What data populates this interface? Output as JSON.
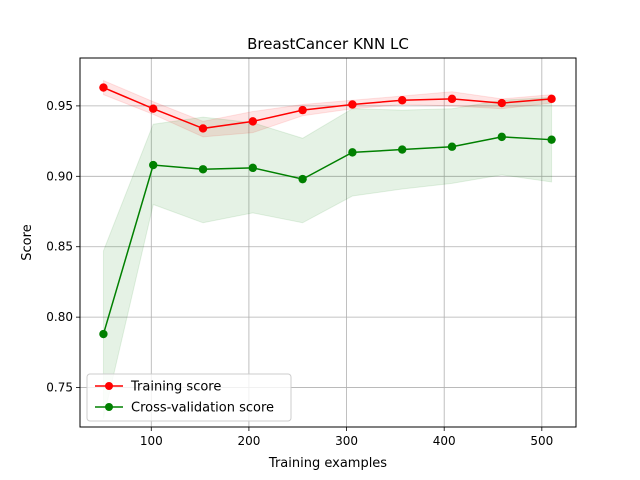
{
  "chart_data": {
    "type": "line",
    "title": "BreastCancer KNN LC",
    "xlabel": "Training examples",
    "ylabel": "Score",
    "xlim": [
      27,
      535
    ],
    "ylim": [
      0.722,
      0.984
    ],
    "xticks": [
      100,
      200,
      300,
      400,
      500
    ],
    "xtick_labels": [
      "100",
      "200",
      "300",
      "400",
      "500"
    ],
    "yticks": [
      0.75,
      0.8,
      0.85,
      0.9,
      0.95
    ],
    "ytick_labels": [
      "0.75",
      "0.80",
      "0.85",
      "0.90",
      "0.95"
    ],
    "grid": true,
    "legend_position": "lower-left",
    "x": [
      51,
      102,
      153,
      204,
      255,
      306,
      357,
      408,
      459,
      510
    ],
    "series": [
      {
        "name": "Training score",
        "color": "#ff0000",
        "marker": "circle",
        "values": [
          0.963,
          0.948,
          0.934,
          0.939,
          0.947,
          0.951,
          0.954,
          0.955,
          0.952,
          0.955
        ],
        "band_lower": [
          0.958,
          0.944,
          0.928,
          0.931,
          0.943,
          0.948,
          0.951,
          0.95,
          0.948,
          0.952
        ],
        "band_upper": [
          0.968,
          0.953,
          0.939,
          0.946,
          0.951,
          0.954,
          0.957,
          0.96,
          0.955,
          0.958
        ],
        "band_color": "#ff0000"
      },
      {
        "name": "Cross-validation score",
        "color": "#008000",
        "marker": "circle",
        "values": [
          0.788,
          0.908,
          0.905,
          0.906,
          0.898,
          0.917,
          0.919,
          0.921,
          0.928,
          0.926
        ],
        "band_lower": [
          0.728,
          0.88,
          0.867,
          0.874,
          0.867,
          0.886,
          0.891,
          0.895,
          0.901,
          0.896
        ],
        "band_upper": [
          0.847,
          0.937,
          0.942,
          0.938,
          0.927,
          0.948,
          0.947,
          0.948,
          0.954,
          0.956
        ],
        "band_color": "#008000"
      }
    ]
  }
}
